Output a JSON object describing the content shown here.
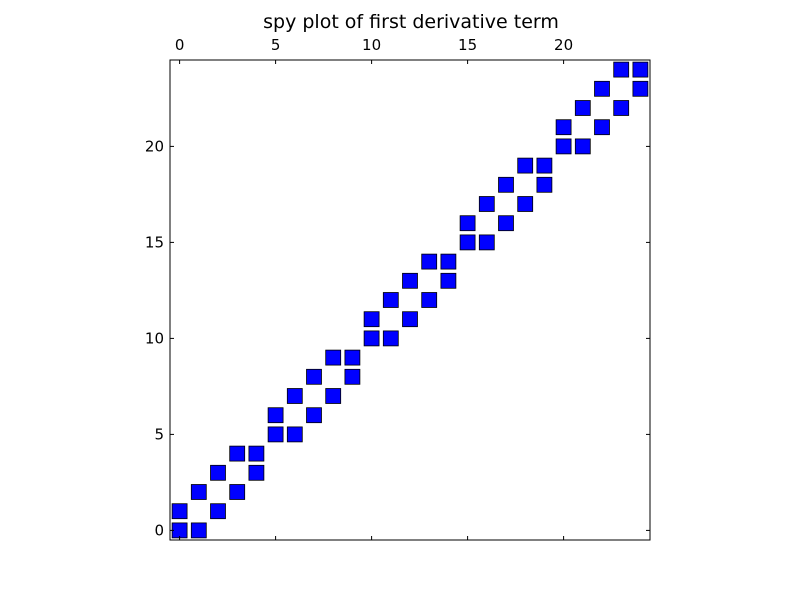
{
  "chart_data": {
    "type": "spy",
    "title": "spy plot of first derivative term",
    "xlabel": "",
    "ylabel": "",
    "matrix_size": [
      25,
      25
    ],
    "xlim": [
      -0.5,
      24.5
    ],
    "ylim": [
      24.5,
      -0.5
    ],
    "x_axis_position": "top",
    "xticks": [
      0,
      5,
      10,
      15,
      20
    ],
    "yticks": [
      0,
      5,
      10,
      15,
      20
    ],
    "xtick_labels": [
      "0",
      "5",
      "10",
      "15",
      "20"
    ],
    "ytick_labels": [
      "0",
      "5",
      "10",
      "15",
      "20"
    ],
    "grid": false,
    "marker": "square",
    "marker_color": "#0000ff",
    "nonzeros": [
      [
        0,
        0
      ],
      [
        0,
        1
      ],
      [
        1,
        0
      ],
      [
        1,
        2
      ],
      [
        2,
        1
      ],
      [
        2,
        3
      ],
      [
        3,
        2
      ],
      [
        3,
        4
      ],
      [
        4,
        3
      ],
      [
        4,
        4
      ],
      [
        5,
        5
      ],
      [
        5,
        6
      ],
      [
        6,
        5
      ],
      [
        6,
        7
      ],
      [
        7,
        6
      ],
      [
        7,
        8
      ],
      [
        8,
        7
      ],
      [
        8,
        9
      ],
      [
        9,
        8
      ],
      [
        9,
        9
      ],
      [
        10,
        10
      ],
      [
        10,
        11
      ],
      [
        11,
        10
      ],
      [
        11,
        12
      ],
      [
        12,
        11
      ],
      [
        12,
        13
      ],
      [
        13,
        12
      ],
      [
        13,
        14
      ],
      [
        14,
        13
      ],
      [
        14,
        14
      ],
      [
        15,
        15
      ],
      [
        15,
        16
      ],
      [
        16,
        15
      ],
      [
        16,
        17
      ],
      [
        17,
        16
      ],
      [
        17,
        18
      ],
      [
        18,
        17
      ],
      [
        18,
        19
      ],
      [
        19,
        18
      ],
      [
        19,
        19
      ],
      [
        20,
        20
      ],
      [
        20,
        21
      ],
      [
        21,
        20
      ],
      [
        21,
        22
      ],
      [
        22,
        21
      ],
      [
        22,
        23
      ],
      [
        23,
        22
      ],
      [
        23,
        24
      ],
      [
        24,
        23
      ],
      [
        24,
        24
      ]
    ]
  }
}
